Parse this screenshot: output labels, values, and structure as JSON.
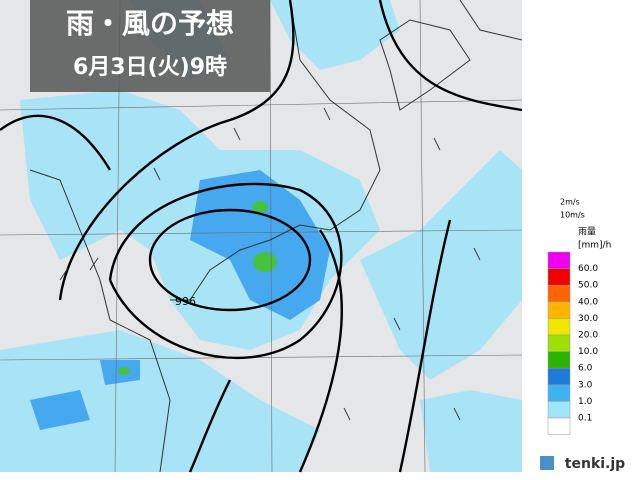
{
  "header": {
    "title": "雨・風の予想",
    "subtitle": "6月3日(火)9時"
  },
  "map": {
    "isobar_label": "996"
  },
  "legend": {
    "wind": [
      "2m/s",
      "10m/s"
    ],
    "title": "雨量",
    "unit": "[mm]/h",
    "levels": [
      {
        "label": "60.0",
        "color": "#f000f0"
      },
      {
        "label": "50.0",
        "color": "#f00000"
      },
      {
        "label": "40.0",
        "color": "#ff6400"
      },
      {
        "label": "30.0",
        "color": "#ffb400"
      },
      {
        "label": "20.0",
        "color": "#f0e600"
      },
      {
        "label": "10.0",
        "color": "#a0e000"
      },
      {
        "label": "6.0",
        "color": "#2cb400"
      },
      {
        "label": "3.0",
        "color": "#1e7ad8"
      },
      {
        "label": "1.0",
        "color": "#3cb4f0"
      },
      {
        "label": "0.1",
        "color": "#a0e6fa"
      },
      {
        "label": "",
        "color": "#ffffff"
      }
    ]
  },
  "logo": "tenki.jp"
}
